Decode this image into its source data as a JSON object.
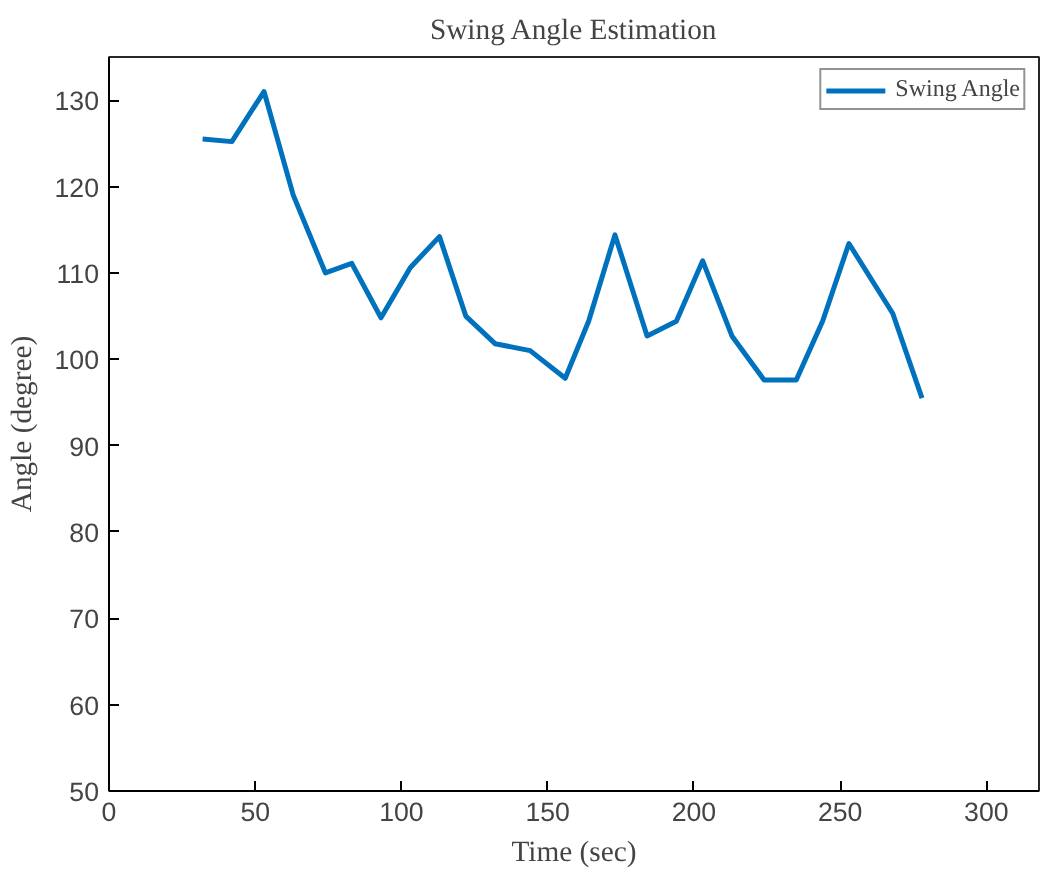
{
  "chart_data": {
    "type": "line",
    "title": "Swing Angle Estimation",
    "xlabel": "Time (sec)",
    "ylabel": "Angle (degree)",
    "x": [
      32,
      42,
      53,
      63,
      74,
      83,
      93,
      103,
      113,
      122,
      132,
      144,
      156,
      164,
      173,
      184,
      194,
      203,
      213,
      224,
      235,
      244,
      253,
      268,
      278
    ],
    "series": [
      {
        "name": "Swing Angle",
        "color": "#0072bd",
        "values": [
          125.5,
          125.2,
          131,
          119,
          110,
          111.1,
          104.8,
          110.6,
          114.2,
          105,
          101.8,
          101,
          97.8,
          104.4,
          114.4,
          102.7,
          104.4,
          111.4,
          102.7,
          97.6,
          97.6,
          104.4,
          113.4,
          105.3,
          95.5
        ]
      }
    ],
    "xlim": [
      0,
      318
    ],
    "ylim": [
      50,
      135
    ],
    "xticks": [
      0,
      50,
      100,
      150,
      200,
      250,
      300
    ],
    "yticks": [
      50,
      60,
      70,
      80,
      90,
      100,
      110,
      120,
      130
    ],
    "grid": false,
    "legend": "top right",
    "marker": "none",
    "line_style": "solid"
  }
}
